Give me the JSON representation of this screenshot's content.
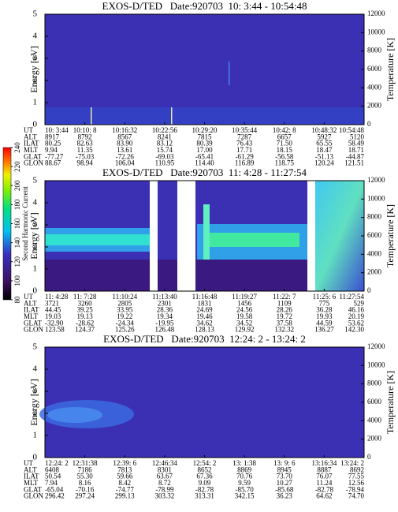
{
  "chart_data": [
    {
      "type": "spectrogram",
      "title": "EXOS-D/TED   Date:920703  10: 3:44 - 10:54:48",
      "ylabel": "Energy [eV]",
      "y2label": "Temperature [K]",
      "ylim": [
        0,
        5
      ],
      "yticks": [
        0,
        1,
        2,
        3,
        4,
        5
      ],
      "y2lim": [
        0,
        12000
      ],
      "y2ticks": [
        0,
        2000,
        4000,
        6000,
        8000,
        10000,
        12000
      ],
      "ephemeris": {
        "rows": [
          "UT",
          "ALT",
          "ILAT",
          "MLT",
          "GLAT",
          "GLON"
        ],
        "values": [
          [
            "10: 3:44",
            "10:10: 8",
            "10:16:32",
            "10:22:56",
            "10:29:20",
            "10:35:44",
            "10:42: 8",
            "10:48:32",
            "10:54:48"
          ],
          [
            "8917",
            "8792",
            "8567",
            "8241",
            "7815",
            "7287",
            "6657",
            "5927",
            "5120"
          ],
          [
            "80.25",
            "82.63",
            "83.90",
            "83.12",
            "80.39",
            "76.43",
            "71.50",
            "65.55",
            "58.49"
          ],
          [
            "9.94",
            "11.35",
            "13.61",
            "15.74",
            "17.00",
            "17.71",
            "18.15",
            "18.47",
            "18.71"
          ],
          [
            "-77.27",
            "-75.03",
            "-72.26",
            "-69.03",
            "-65.41",
            "-61.29",
            "-56.58",
            "-51.13",
            "-44.87"
          ],
          [
            "88.67",
            "98.94",
            "106.04",
            "110.95",
            "114.40",
            "116.89",
            "118.75",
            "120.24",
            "121.51"
          ]
        ]
      }
    },
    {
      "type": "spectrogram",
      "title": "EXOS-D/TED   Date:920703  11: 4:28 - 11:27:54",
      "ylabel": "Energy [eV]",
      "y2label": "Temperature [K]",
      "ylim": [
        0,
        5
      ],
      "yticks": [
        0,
        1,
        2,
        3,
        4,
        5
      ],
      "y2lim": [
        0,
        12000
      ],
      "y2ticks": [
        0,
        2000,
        4000,
        6000,
        8000,
        10000,
        12000
      ],
      "ephemeris": {
        "rows": [
          "UT",
          "ALT",
          "ILAT",
          "MLT",
          "GLAT",
          "GLON"
        ],
        "values": [
          [
            "11: 4:28",
            "11: 7:28",
            "11:10:24",
            "11:13:40",
            "11:16:48",
            "11:19:27",
            "11:22: 7",
            "11:25: 6",
            "11:27:54"
          ],
          [
            "3721",
            "3260",
            "2805",
            "2301",
            "1831",
            "1456",
            "1109",
            "775",
            "529"
          ],
          [
            "44.45",
            "39.25",
            "33.95",
            "28.36",
            "24.69",
            "24.56",
            "28.26",
            "36.28",
            "46.16"
          ],
          [
            "19.03",
            "19.13",
            "19.22",
            "19.34",
            "19.46",
            "19.58",
            "19.72",
            "19.93",
            "20.19"
          ],
          [
            "-32.90",
            "-28.62",
            "-24.34",
            "-19.95",
            "34.62",
            "34.52",
            "37.58",
            "44.59",
            "53.62"
          ],
          [
            "123.58",
            "124.37",
            "125.26",
            "126.48",
            "128.13",
            "129.92",
            "132.32",
            "136.27",
            "142.30"
          ]
        ]
      }
    },
    {
      "type": "spectrogram",
      "title": "EXOS-D/TED   Date:920703  12:24: 2 - 13:24: 2",
      "ylabel": "Energy [eV]",
      "y2label": "Temperature [K]",
      "ylim": [
        0,
        5
      ],
      "yticks": [
        0,
        1,
        2,
        3,
        4,
        5
      ],
      "y2lim": [
        0,
        12000
      ],
      "y2ticks": [
        0,
        2000,
        4000,
        6000,
        8000,
        10000,
        12000
      ],
      "ephemeris": {
        "rows": [
          "UT",
          "ALT",
          "ILAT",
          "MLT",
          "GLAT",
          "GLON"
        ],
        "values": [
          [
            "12:24: 2",
            "12:31:38",
            "12:39: 6",
            "12:46:34",
            "12:54: 2",
            "13: 1:38",
            "13: 9: 6",
            "13:16:34",
            "13:24: 2"
          ],
          [
            "6408",
            "7186",
            "7813",
            "8301",
            "8652",
            "8869",
            "8945",
            "8887",
            "8692"
          ],
          [
            "50.54",
            "55.30",
            "59.66",
            "63.67",
            "67.36",
            "70.76",
            "73.70",
            "76.07",
            "77.55"
          ],
          [
            "7.94",
            "8.16",
            "8.42",
            "8.72",
            "9.09",
            "9.59",
            "10.27",
            "11.24",
            "12.56"
          ],
          [
            "-65.04",
            "-70.16",
            "-74.77",
            "-78.99",
            "-82.78",
            "-85.70",
            "-85.68",
            "-82.78",
            "-78.94"
          ],
          [
            "296.42",
            "297.24",
            "299.13",
            "303.32",
            "313.31",
            "342.15",
            "36.23",
            "64.62",
            "74.70"
          ]
        ]
      }
    }
  ],
  "colorbar": {
    "label": "Second Harmonic Current",
    "lim": [
      80,
      240
    ],
    "ticks": [
      80,
      100,
      120,
      140,
      160,
      180,
      200,
      220,
      240
    ]
  }
}
